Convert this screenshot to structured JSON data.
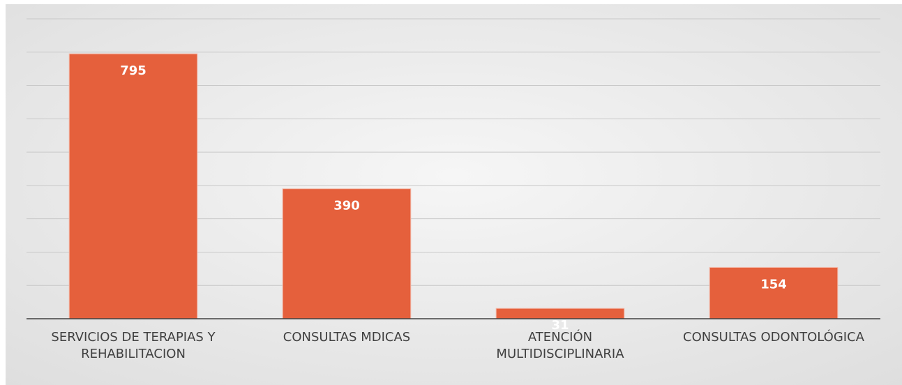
{
  "chart_data": {
    "type": "bar",
    "categories": [
      "SERVICIOS DE TERAPIAS Y REHABILITACION",
      "CONSULTAS MDICAS",
      "ATENCIÓN MULTIDISCIPLINARIA",
      "CONSULTAS ODONTOLÓGICA"
    ],
    "values": [
      795,
      390,
      31,
      154
    ],
    "color": "#e5603c",
    "ylim": [
      0,
      900
    ],
    "yticks": [
      0,
      100,
      200,
      300,
      400,
      500,
      600,
      700,
      800,
      900
    ],
    "grid": true
  }
}
